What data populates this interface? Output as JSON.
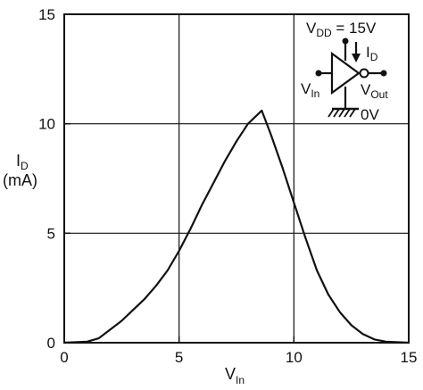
{
  "chart_data": {
    "type": "line",
    "title": "",
    "xlabel": {
      "main": "V",
      "sub": "In"
    },
    "ylabel": {
      "main": "I",
      "sub": "D",
      "line2": "(mA)"
    },
    "xlim": [
      0,
      15
    ],
    "ylim": [
      0,
      15
    ],
    "x_ticks": [
      "0",
      "5",
      "10",
      "15"
    ],
    "y_ticks": [
      "0",
      "5",
      "10",
      "15"
    ],
    "grid": true,
    "series": [
      {
        "points": [
          [
            0,
            0
          ],
          [
            1,
            0.05
          ],
          [
            1.5,
            0.2
          ],
          [
            2,
            0.6
          ],
          [
            2.5,
            1.0
          ],
          [
            3,
            1.5
          ],
          [
            3.5,
            2.0
          ],
          [
            4,
            2.6
          ],
          [
            4.5,
            3.3
          ],
          [
            5,
            4.2
          ],
          [
            5.5,
            5.2
          ],
          [
            6,
            6.3
          ],
          [
            6.5,
            7.3
          ],
          [
            7,
            8.3
          ],
          [
            7.5,
            9.2
          ],
          [
            8,
            10.0
          ],
          [
            8.6,
            10.6
          ],
          [
            9,
            9.5
          ],
          [
            9.5,
            8.0
          ],
          [
            10,
            6.4
          ],
          [
            10.5,
            4.8
          ],
          [
            11,
            3.3
          ],
          [
            11.5,
            2.2
          ],
          [
            12,
            1.4
          ],
          [
            12.5,
            0.8
          ],
          [
            13,
            0.4
          ],
          [
            13.5,
            0.15
          ],
          [
            14,
            0.05
          ],
          [
            15,
            0
          ]
        ]
      }
    ],
    "inset": {
      "vdd": {
        "main": "V",
        "sub": "DD",
        "rest": " = 15V"
      },
      "id": {
        "main": "I",
        "sub": "D"
      },
      "vin": {
        "main": "V",
        "sub": "In"
      },
      "vout": {
        "main": "V",
        "sub": "Out"
      },
      "ground": "0V"
    }
  }
}
